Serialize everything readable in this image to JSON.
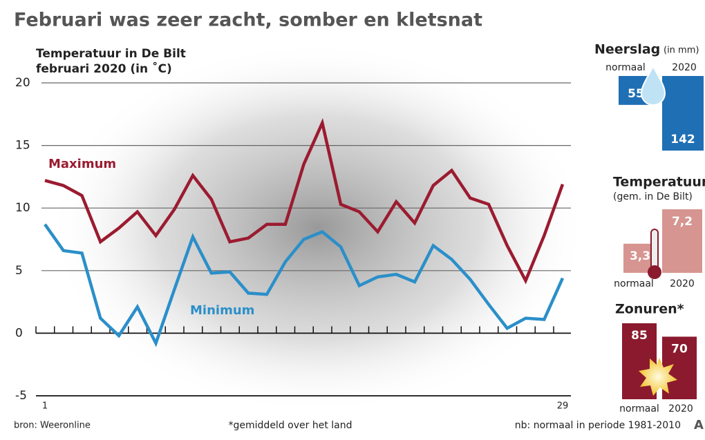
{
  "title": "Februari was zeer zacht, somber en kletsnat",
  "footer": {
    "source": "bron: Weeronline",
    "note": "*gemiddeld over het land",
    "period": "nb: normaal in periode 1981-2010",
    "logo": "A"
  },
  "chart_data": [
    {
      "type": "line",
      "title": "Temperatuur in De Bilt",
      "subtitle": "februari 2020 (in ˚C)",
      "x": [
        1,
        2,
        3,
        4,
        5,
        6,
        7,
        8,
        9,
        10,
        11,
        12,
        13,
        14,
        15,
        16,
        17,
        18,
        19,
        20,
        21,
        22,
        23,
        24,
        25,
        26,
        27,
        28,
        29
      ],
      "xlim": [
        1,
        29
      ],
      "xticks": [
        1,
        29
      ],
      "ylim": [
        -5,
        20
      ],
      "yticks": [
        -5,
        0,
        5,
        10,
        15,
        20
      ],
      "grid": true,
      "series": [
        {
          "name": "Maximum",
          "color": "#9b1b30",
          "values": [
            12.2,
            11.8,
            11.0,
            7.3,
            8.4,
            9.7,
            7.8,
            9.9,
            12.6,
            10.7,
            7.3,
            7.6,
            8.7,
            8.7,
            13.5,
            16.8,
            10.3,
            9.7,
            8.1,
            10.5,
            8.8,
            11.8,
            13.0,
            10.8,
            10.3,
            7.0,
            4.2,
            7.8,
            11.9
          ]
        },
        {
          "name": "Minimum",
          "color": "#2b8fc9",
          "values": [
            8.7,
            6.6,
            6.4,
            1.2,
            -0.2,
            2.1,
            -0.8,
            3.5,
            7.7,
            4.8,
            4.9,
            3.2,
            3.1,
            5.7,
            7.5,
            8.1,
            6.9,
            3.8,
            4.5,
            4.7,
            4.1,
            7.0,
            5.9,
            4.3,
            2.3,
            0.4,
            1.2,
            1.1,
            4.4
          ]
        }
      ]
    },
    {
      "type": "bar",
      "title": "Neerslag",
      "subtitle": "(in mm)",
      "categories": [
        "normaal",
        "2020"
      ],
      "values": [
        55,
        142
      ],
      "color": "#1f6fb5"
    },
    {
      "type": "bar",
      "title": "Temperatuur",
      "subtitle": "(gem. in De Bilt)",
      "categories": [
        "normaal",
        "2020"
      ],
      "values": [
        3.3,
        7.2
      ],
      "value_labels": [
        "3,3",
        "7,2"
      ],
      "color": "#d69590"
    },
    {
      "type": "bar",
      "title": "Zonuren*",
      "categories": [
        "normaal",
        "2020"
      ],
      "values": [
        85,
        70
      ],
      "color": "#8b1a2e"
    }
  ]
}
